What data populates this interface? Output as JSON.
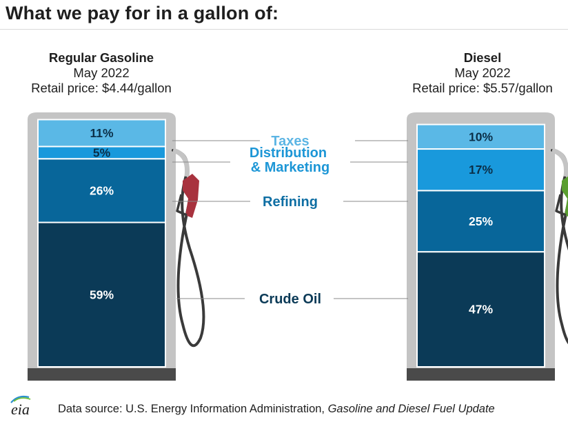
{
  "title": "What we pay for in a gallon of:",
  "fuels": [
    {
      "name": "Regular Gasoline",
      "date": "May 2022",
      "price_label": "Retail price: $4.44/gallon"
    },
    {
      "name": "Diesel",
      "date": "May 2022",
      "price_label": "Retail price: $5.57/gallon"
    }
  ],
  "footer": {
    "source_prefix": "Data source: U.S. Energy Information Administration, ",
    "source_title": "Gasoline and Diesel Fuel Update",
    "logo_text": "eia"
  },
  "chart_data": {
    "type": "bar",
    "stacked": true,
    "orientation": "vertical",
    "categories": [
      "Regular Gasoline",
      "Diesel"
    ],
    "series": [
      {
        "name": "Crude Oil",
        "values": [
          59,
          47
        ],
        "labels": [
          "59%",
          "47%"
        ],
        "color": "#0b3a57",
        "label_color": "#0b3a57"
      },
      {
        "name": "Refining",
        "values": [
          26,
          25
        ],
        "labels": [
          "26%",
          "25%"
        ],
        "color": "#08669a",
        "label_color": "#0e6ea3"
      },
      {
        "name": "Distribution & Marketing",
        "label_lines": [
          "Distribution",
          "& Marketing"
        ],
        "values": [
          5,
          17
        ],
        "labels": [
          "5%",
          "17%"
        ],
        "color": "#1999dc",
        "label_color": "#1c96d6"
      },
      {
        "name": "Taxes",
        "values": [
          11,
          10
        ],
        "labels": [
          "11%",
          "10%"
        ],
        "color": "#5ab8e6",
        "label_color": "#5cb5e4"
      }
    ],
    "unit": "%",
    "ylim": [
      0,
      100
    ],
    "nozzle_colors": [
      "#a8323e",
      "#5a9e2f"
    ],
    "pump_frame_color": "#c4c4c4",
    "pump_base_color": "#4a4a4a"
  }
}
